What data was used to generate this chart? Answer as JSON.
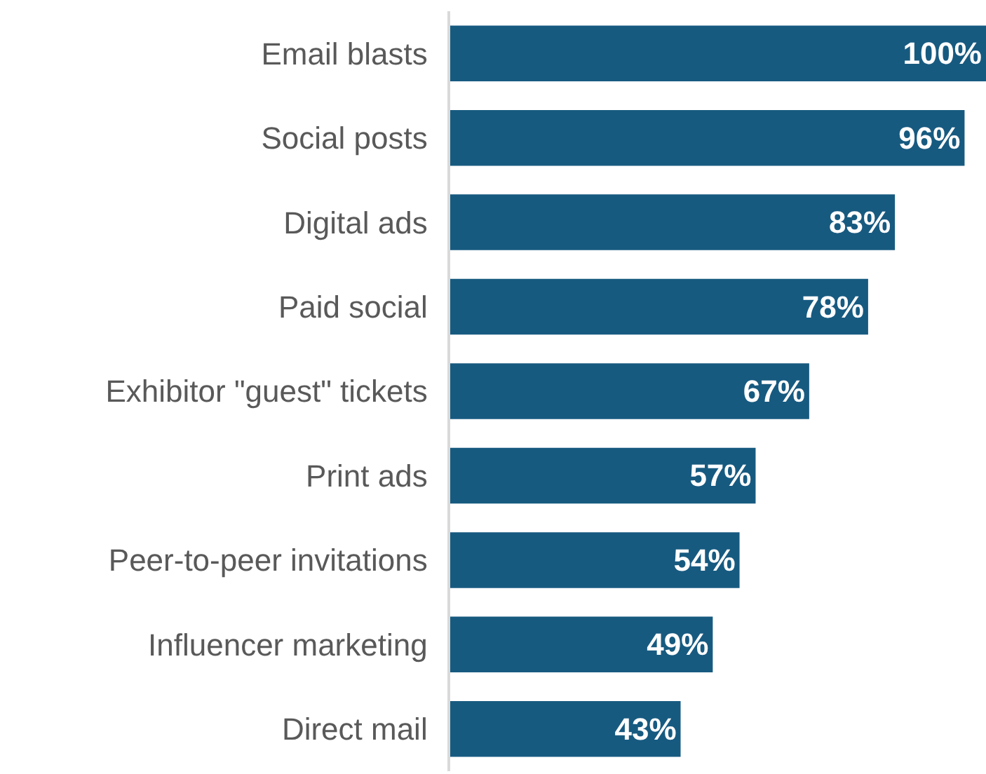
{
  "chart_data": {
    "type": "bar",
    "orientation": "horizontal",
    "categories": [
      "Email blasts",
      "Social posts",
      "Digital ads",
      "Paid social",
      "Exhibitor \"guest\" tickets",
      "Print ads",
      "Peer-to-peer invitations",
      "Influencer marketing",
      "Direct mail"
    ],
    "values": [
      100,
      96,
      83,
      78,
      67,
      57,
      54,
      49,
      43
    ],
    "value_labels": [
      "100%",
      "96%",
      "83%",
      "78%",
      "67%",
      "57%",
      "54%",
      "49%",
      "43%"
    ],
    "color": "#175a80",
    "xlim": [
      0,
      100
    ],
    "tick_labels": "y",
    "grid": false
  }
}
